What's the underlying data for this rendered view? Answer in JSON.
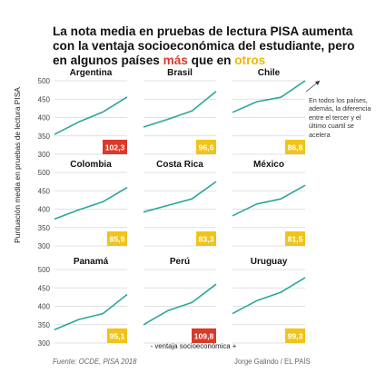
{
  "title": {
    "text_before": "La nota media en pruebas de lectura PISA aumenta con la ventaja socioeconómica del estudiante, pero en algunos países ",
    "highlight_red": "más",
    "text_middle": " que en ",
    "highlight_yellow": "otros"
  },
  "ylabel": "Puntuación media en pruebas de lectura PISA",
  "xlabel": "- ventaja socioeconómica +",
  "source": "Fuente: OCDE, PISA 2018",
  "credit": "Jorge Galindo / EL PAÍS",
  "annotation": "En todos los países, además, la diferencia entre el tercer y el último cuartil se acelera",
  "colors": {
    "line": "#2aa69a",
    "red": "#d93a2b",
    "yellow": "#f0c419",
    "grid": "#d6d6d6",
    "tick": "#444444"
  },
  "chart_data": {
    "type": "line",
    "ylim": [
      300,
      500
    ],
    "yticks": [
      300,
      350,
      400,
      450,
      500
    ],
    "x": [
      1,
      2,
      3,
      4
    ],
    "panels": [
      {
        "name": "Argentina",
        "values": [
          354,
          388,
          415,
          456
        ],
        "badge": "102,3",
        "badge_color": "red"
      },
      {
        "name": "Brasil",
        "values": [
          374,
          395,
          418,
          471
        ],
        "badge": "96,6",
        "badge_color": "yellow"
      },
      {
        "name": "Chile",
        "values": [
          414,
          443,
          455,
          500
        ],
        "badge": "86,8",
        "badge_color": "yellow"
      },
      {
        "name": "Colombia",
        "values": [
          373,
          398,
          420,
          459
        ],
        "badge": "85,9",
        "badge_color": "yellow"
      },
      {
        "name": "Costa Rica",
        "values": [
          392,
          410,
          428,
          475
        ],
        "badge": "83,3",
        "badge_color": "yellow"
      },
      {
        "name": "México",
        "values": [
          382,
          414,
          428,
          465
        ],
        "badge": "81,5",
        "badge_color": "yellow"
      },
      {
        "name": "Panamá",
        "values": [
          336,
          364,
          380,
          432
        ],
        "badge": "95,1",
        "badge_color": "yellow"
      },
      {
        "name": "Perú",
        "values": [
          350,
          388,
          410,
          460
        ],
        "badge": "109,8",
        "badge_color": "red"
      },
      {
        "name": "Uruguay",
        "values": [
          380,
          415,
          438,
          478
        ],
        "badge": "99,3",
        "badge_color": "yellow"
      }
    ]
  }
}
